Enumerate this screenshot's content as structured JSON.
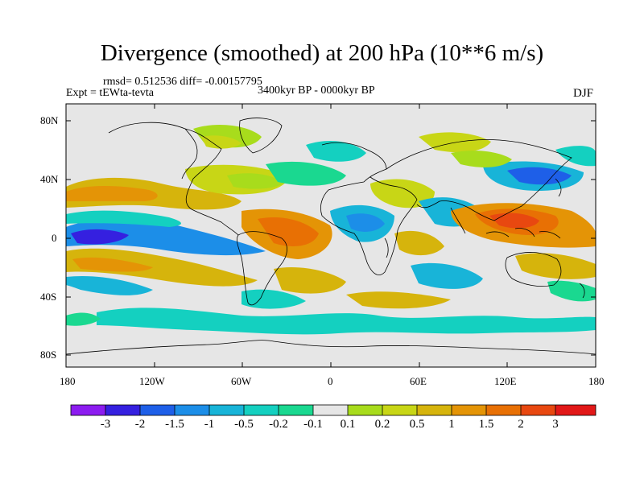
{
  "title": "Divergence (smoothed) at 200 hPa (10**6 m/s)",
  "stats": "rmsd= 0.512536 diff= -0.00157795",
  "experiment": "Expt = tEWta-tevta",
  "period": "3400kyr BP - 0000kyr BP",
  "season": "DJF",
  "colors": {
    "background_field": "#e6e6e6",
    "coast": "#000000",
    "levels": [
      "#8c1cf0",
      "#3520e0",
      "#1e5fe8",
      "#1c8ee8",
      "#18b4d8",
      "#14d0c0",
      "#1ad890",
      "#e6e6e6",
      "#a8dc1c",
      "#c8d616",
      "#d6b40c",
      "#e49406",
      "#e87004",
      "#e84810",
      "#e21818"
    ]
  },
  "chart_data": {
    "type": "map-contour",
    "variable": "Divergence (smoothed) at 200 hPa",
    "units": "10**6 m/s",
    "lon_ticks": [
      "180",
      "120W",
      "60W",
      "0",
      "60E",
      "120E",
      "180"
    ],
    "lat_ticks": [
      "80N",
      "40N",
      "0",
      "40S",
      "80S"
    ],
    "colorbar_labels": [
      "-3",
      "-2",
      "-1.5",
      "-1",
      "-0.5",
      "-0.2",
      "-0.1",
      "0.1",
      "0.2",
      "0.5",
      "1",
      "1.5",
      "2",
      "3"
    ],
    "anomaly_regions": [
      {
        "region": "west-central Pacific south of equator",
        "value": -2
      },
      {
        "region": "north-central Pacific 20-30N",
        "value": 1
      },
      {
        "region": "eastern Pacific 30-40N",
        "value": 1
      },
      {
        "region": "eastern tropical Pacific",
        "value": -0.5
      },
      {
        "region": "southern Pacific 20-35S band",
        "value": 1
      },
      {
        "region": "tropical South America / Atlantic",
        "value": 1
      },
      {
        "region": "north Atlantic 40-50N",
        "value": -0.5
      },
      {
        "region": "equatorial Atlantic",
        "value": -0.5
      },
      {
        "region": "west Africa",
        "value": 0.5
      },
      {
        "region": "Arabian Sea",
        "value": -0.5
      },
      {
        "region": "Indian Ocean south",
        "value": -0.5
      },
      {
        "region": "Maritime continent / western Pacific",
        "value": 2
      },
      {
        "region": "North Pacific 30-40N east of Japan",
        "value": -1.5
      },
      {
        "region": "Siberia 60N",
        "value": 0.5
      },
      {
        "region": "Southern ocean 60S",
        "value": -0.2
      }
    ]
  }
}
